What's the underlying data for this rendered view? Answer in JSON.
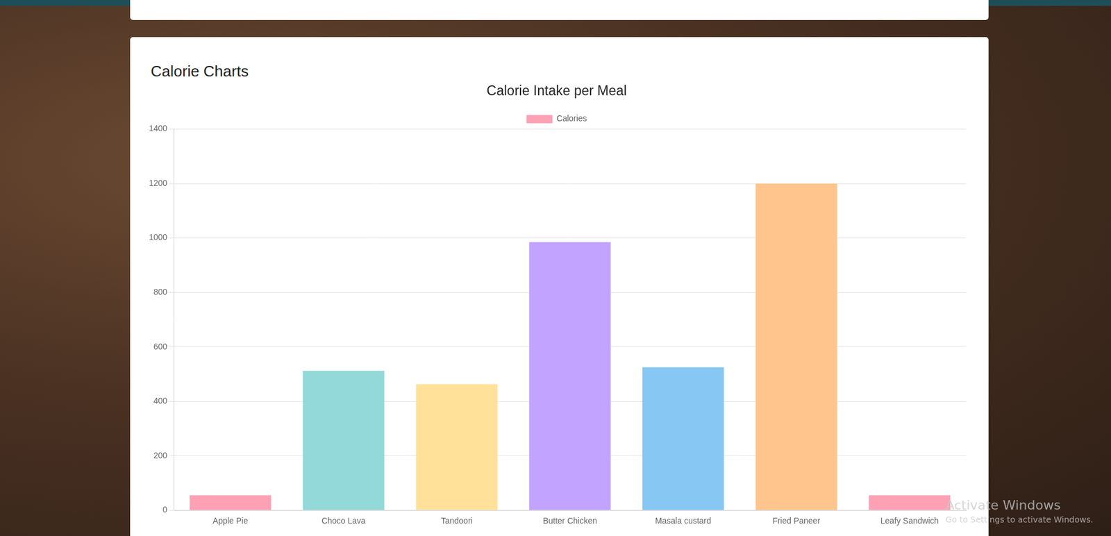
{
  "heading": "Calorie Charts",
  "chart_data": {
    "type": "bar",
    "title": "Calorie Intake per Meal",
    "categories": [
      "Apple Pie",
      "Choco Lava",
      "Tandoori",
      "Butter Chicken",
      "Masala custard",
      "Fried Paneer",
      "Leafy Sandwich"
    ],
    "series": [
      {
        "name": "Calories",
        "values": [
          55,
          512,
          463,
          985,
          525,
          1200,
          55
        ],
        "colors": [
          "#ffa1b5",
          "#93d9d9",
          "#ffe19a",
          "#c2a3ff",
          "#86c7f3",
          "#ffc58c",
          "#ffa1b5"
        ]
      }
    ],
    "ylim": [
      0,
      1400
    ],
    "yticks": [
      0,
      200,
      400,
      600,
      800,
      1000,
      1200,
      1400
    ],
    "grid": true,
    "legend": "top"
  },
  "watermark": {
    "title": "Activate Windows",
    "subtitle": "Go to Settings to activate Windows."
  }
}
